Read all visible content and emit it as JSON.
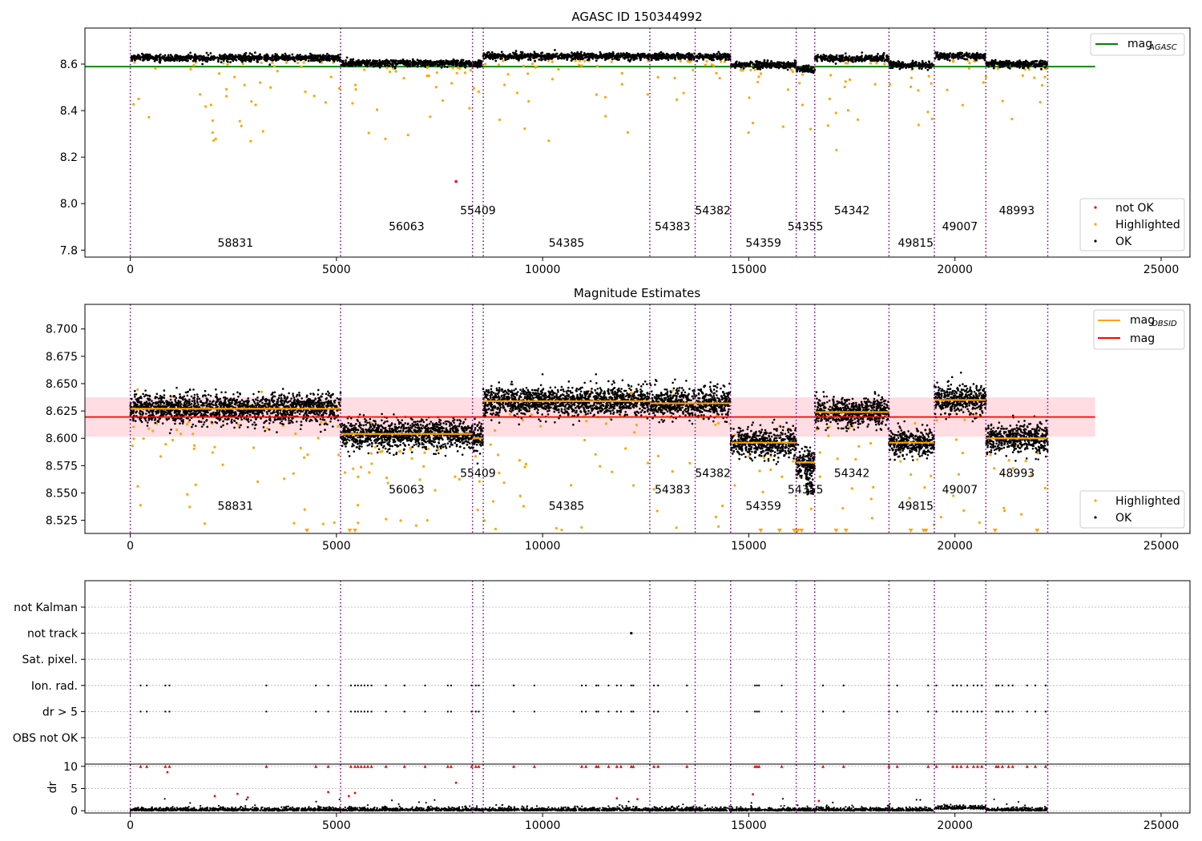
{
  "chart_data": [
    {
      "type": "scatter",
      "title": "AGASC ID 150344992",
      "xlabel": "",
      "ylabel": "",
      "xlim": [
        -1100,
        25700
      ],
      "ylim": [
        7.77,
        8.755
      ],
      "xticks": [
        0,
        5000,
        10000,
        15000,
        20000,
        25000
      ],
      "yticks": [
        7.8,
        8.0,
        8.2,
        8.4,
        8.6
      ],
      "ytick_labels": [
        "7.8",
        "8.0",
        "8.2",
        "8.4",
        "8.6"
      ],
      "grid": false,
      "hline": {
        "name": "mag_AGASC",
        "value": 8.589,
        "x_range": [
          -1100,
          23400
        ],
        "color": "#008000"
      },
      "segments": [
        {
          "obsid": "58831",
          "x_start": 0,
          "x_end": 5100,
          "level": 8.627,
          "label_x": 2550,
          "label_y": 7.815
        },
        {
          "obsid": "56063",
          "x_start": 5100,
          "x_end": 8300,
          "level": 8.604,
          "label_x": 6700,
          "label_y": 7.885
        },
        {
          "obsid": "55409",
          "x_start": 8300,
          "x_end": 8560,
          "level": 8.6,
          "label_x": 8430,
          "label_y": 7.955
        },
        {
          "obsid": "54385",
          "x_start": 8560,
          "x_end": 12600,
          "level": 8.634,
          "label_x": 10580,
          "label_y": 7.815
        },
        {
          "obsid": "54383",
          "x_start": 12600,
          "x_end": 13700,
          "level": 8.632,
          "label_x": 13150,
          "label_y": 7.885
        },
        {
          "obsid": "54382",
          "x_start": 13700,
          "x_end": 14560,
          "level": 8.632,
          "label_x": 14130,
          "label_y": 7.955
        },
        {
          "obsid": "54359",
          "x_start": 14560,
          "x_end": 16150,
          "level": 8.596,
          "label_x": 15355,
          "label_y": 7.815
        },
        {
          "obsid": "54355",
          "x_start": 16150,
          "x_end": 16600,
          "level": 8.578,
          "label_x": 16375,
          "label_y": 7.885
        },
        {
          "obsid": "54342",
          "x_start": 16600,
          "x_end": 18400,
          "level": 8.624,
          "label_x": 17500,
          "label_y": 7.955
        },
        {
          "obsid": "49815",
          "x_start": 18400,
          "x_end": 19500,
          "level": 8.596,
          "label_x": 19050,
          "label_y": 7.815
        },
        {
          "obsid": "49007",
          "x_start": 19500,
          "x_end": 20750,
          "level": 8.635,
          "label_x": 20120,
          "label_y": 7.885
        },
        {
          "obsid": "48993",
          "x_start": 20750,
          "x_end": 22250,
          "level": 8.6,
          "label_x": 21500,
          "label_y": 7.955
        }
      ],
      "boundaries": [
        0,
        5100,
        8300,
        8560,
        12600,
        13700,
        14560,
        16150,
        16600,
        18400,
        19500,
        20750,
        22250
      ],
      "not_ok_points": [
        {
          "x": 7900,
          "y": 8.095
        }
      ],
      "legend": {
        "position": "upper-right",
        "entries": [
          {
            "label": "mag",
            "sub": "AGASC",
            "color": "#008000"
          }
        ]
      },
      "legend2": {
        "position": "lower-right",
        "entries": [
          {
            "label": "not OK",
            "color": "#ff0000"
          },
          {
            "label": "Highlighted",
            "color": "#ffa500"
          },
          {
            "label": "OK",
            "color": "#000000"
          }
        ]
      }
    },
    {
      "type": "scatter",
      "title": "Magnitude Estimates",
      "xlabel": "",
      "ylabel": "",
      "xlim": [
        -1100,
        25700
      ],
      "ylim": [
        8.513,
        8.7225
      ],
      "xticks": [
        0,
        5000,
        10000,
        15000,
        20000,
        25000
      ],
      "yticks": [
        8.525,
        8.55,
        8.575,
        8.6,
        8.625,
        8.65,
        8.675,
        8.7
      ],
      "ytick_labels": [
        "8.525",
        "8.550",
        "8.575",
        "8.600",
        "8.625",
        "8.650",
        "8.675",
        "8.700"
      ],
      "grid": false,
      "mag_line": {
        "value": 8.6195,
        "band": [
          8.6015,
          8.6375
        ],
        "x_range": [
          -1100,
          23400
        ],
        "color": "#ff0000",
        "band_color": "#ffdde2"
      },
      "obsid_label_y": [
        8.5345,
        8.5495,
        8.5645
      ],
      "legend": {
        "position": "upper-right",
        "entries": [
          {
            "label": "mag",
            "sub": "OBSID",
            "color": "#ffa500"
          },
          {
            "label": "mag",
            "sub": "",
            "color": "#ff0000"
          }
        ]
      },
      "legend2": {
        "position": "lower-right",
        "entries": [
          {
            "label": "Highlighted",
            "color": "#ffa500"
          },
          {
            "label": "OK",
            "color": "#000000"
          }
        ]
      }
    },
    {
      "type": "scatter",
      "title": "",
      "xlim": [
        -1100,
        25700
      ],
      "xticks": [
        0,
        5000,
        10000,
        15000,
        20000,
        25000
      ],
      "flag_labels": [
        "not Kalman",
        "not track",
        "Sat. pixel.",
        "Ion. rad.",
        "dr > 5",
        "OBS not OK"
      ],
      "flag_x": [
        250,
        400,
        850,
        950,
        3300,
        4500,
        4800,
        5350,
        5450,
        5520,
        5600,
        5680,
        5760,
        5850,
        6200,
        6650,
        7150,
        7700,
        7780,
        8280,
        8380,
        8450,
        9300,
        9800,
        10950,
        11050,
        11300,
        11350,
        11600,
        11800,
        11900,
        12150,
        12200,
        12700,
        12800,
        13500,
        15150,
        15200,
        15250,
        15800,
        16800,
        17300,
        18400,
        18600,
        19350,
        19550,
        19950,
        20050,
        20150,
        20300,
        20450,
        20550,
        20650,
        21000,
        21050,
        21150,
        21300,
        21400,
        21750,
        21950,
        22200
      ],
      "not_track_x": [
        12150
      ],
      "dr_label": "dr",
      "dr_ylim": [
        -0.5,
        10.5
      ],
      "dr_yticks": [
        0,
        5,
        10
      ],
      "dr_clip": 10,
      "dr_outliers": [
        {
          "x": 900,
          "y": 8.7
        },
        {
          "x": 2050,
          "y": 3.3
        },
        {
          "x": 2600,
          "y": 3.8
        },
        {
          "x": 2850,
          "y": 3.0
        },
        {
          "x": 4800,
          "y": 4.2
        },
        {
          "x": 5300,
          "y": 3.3
        },
        {
          "x": 5450,
          "y": 4.0
        },
        {
          "x": 7900,
          "y": 6.3
        },
        {
          "x": 11800,
          "y": 2.8
        },
        {
          "x": 12300,
          "y": 2.6
        },
        {
          "x": 15100,
          "y": 3.7
        },
        {
          "x": 16700,
          "y": 2.2
        }
      ]
    }
  ]
}
